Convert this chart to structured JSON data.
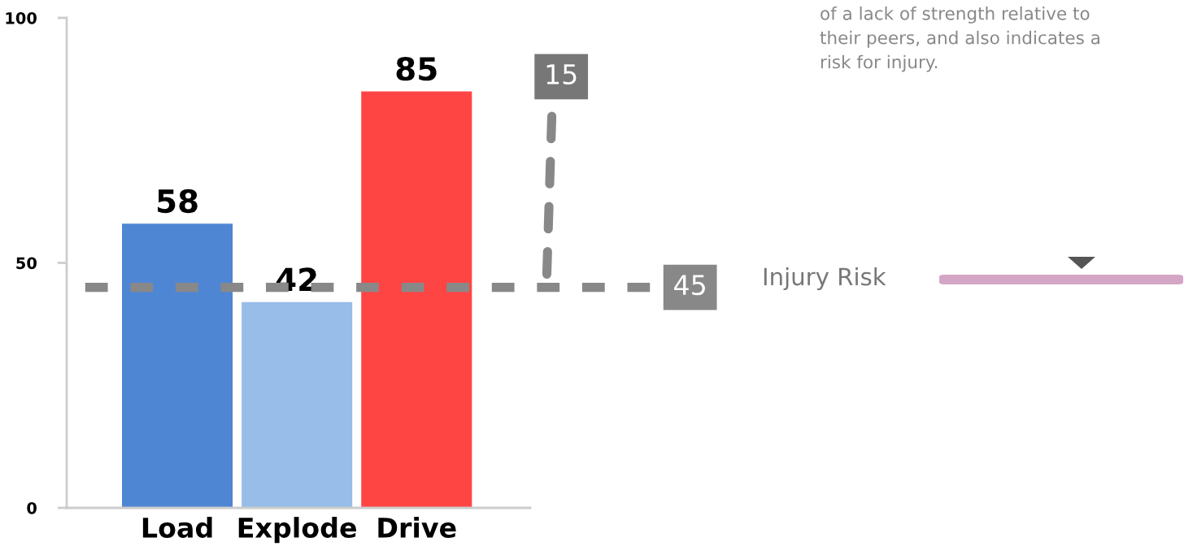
{
  "chart_data": {
    "type": "bar",
    "categories": [
      "Load",
      "Explode",
      "Drive"
    ],
    "values": [
      58,
      42,
      85
    ],
    "colors": [
      "#4f86d4",
      "#97bde8",
      "#ff4444"
    ],
    "ylim": [
      0,
      100
    ],
    "yticks": [
      0,
      50,
      100
    ],
    "data_labels": true,
    "grid": false,
    "legend": false,
    "ref_lines": [
      {
        "axis": "y",
        "value": 45,
        "label": "45",
        "color": "#888888",
        "line_style": "dashed"
      }
    ],
    "annotations": [
      "15",
      "of a lack of strength relative to\ntheir peers, and also indicates a\nrisk for injury.",
      "Injury Risk"
    ]
  }
}
